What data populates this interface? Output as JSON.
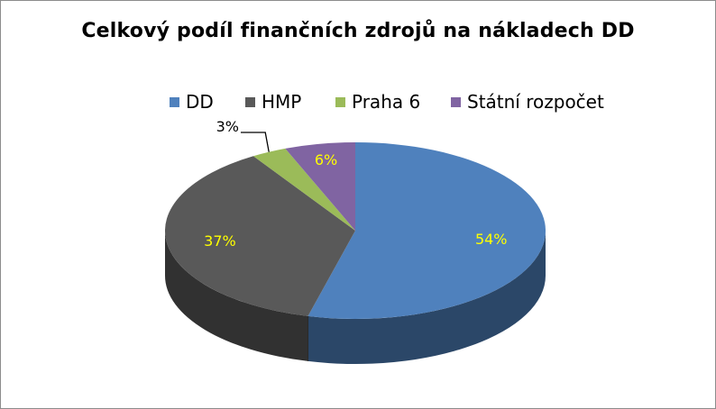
{
  "chart_data": {
    "type": "pie",
    "title": "Celkový podíl finančních zdrojů na nákladech DD",
    "categories": [
      "DD",
      "HMP",
      "Praha 6",
      "Státní rozpočet"
    ],
    "values": [
      54,
      37,
      3,
      6
    ],
    "labels": [
      "54%",
      "37%",
      "3%",
      "6%"
    ],
    "colors": [
      "#4f81bd",
      "#595959",
      "#9bbb59",
      "#8064a2"
    ],
    "label_colors": [
      "#ffff00",
      "#ffff00",
      "#000000",
      "#ffff00"
    ],
    "legend_position": "top",
    "style": "3d-pie"
  }
}
